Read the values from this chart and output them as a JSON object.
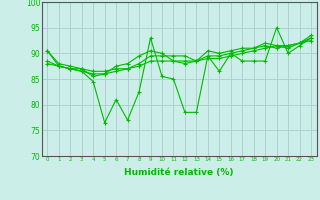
{
  "title": "",
  "xlabel": "Humidité relative (%)",
  "ylabel": "",
  "background_color": "#cceee8",
  "grid_color": "#aacccc",
  "line_color": "#00bb00",
  "xlim": [
    -0.5,
    23.5
  ],
  "ylim": [
    70,
    100
  ],
  "yticks": [
    70,
    75,
    80,
    85,
    90,
    95,
    100
  ],
  "xticks": [
    0,
    1,
    2,
    3,
    4,
    5,
    6,
    7,
    8,
    9,
    10,
    11,
    12,
    13,
    14,
    15,
    16,
    17,
    18,
    19,
    20,
    21,
    22,
    23
  ],
  "series": [
    [
      90.5,
      87.5,
      87.0,
      86.5,
      84.5,
      76.5,
      81.0,
      77.0,
      82.5,
      93.0,
      85.5,
      85.0,
      78.5,
      78.5,
      89.5,
      86.5,
      90.0,
      88.5,
      88.5,
      88.5,
      95.0,
      90.0,
      91.5,
      93.0
    ],
    [
      88.0,
      87.5,
      87.0,
      87.0,
      86.5,
      86.5,
      87.0,
      87.0,
      87.5,
      88.5,
      88.5,
      88.5,
      88.5,
      88.5,
      89.0,
      89.0,
      89.5,
      90.0,
      90.5,
      91.0,
      91.5,
      91.5,
      92.0,
      92.5
    ],
    [
      88.5,
      87.5,
      87.0,
      86.5,
      86.0,
      86.0,
      86.5,
      87.0,
      88.0,
      89.5,
      89.5,
      89.5,
      89.5,
      88.5,
      89.5,
      89.5,
      90.0,
      90.5,
      91.0,
      92.0,
      91.5,
      91.0,
      92.0,
      93.0
    ],
    [
      90.5,
      88.0,
      87.5,
      87.0,
      85.5,
      86.0,
      87.5,
      88.0,
      89.5,
      90.5,
      90.0,
      88.5,
      88.0,
      88.5,
      90.5,
      90.0,
      90.5,
      91.0,
      91.0,
      91.5,
      91.0,
      91.5,
      92.0,
      93.5
    ]
  ]
}
